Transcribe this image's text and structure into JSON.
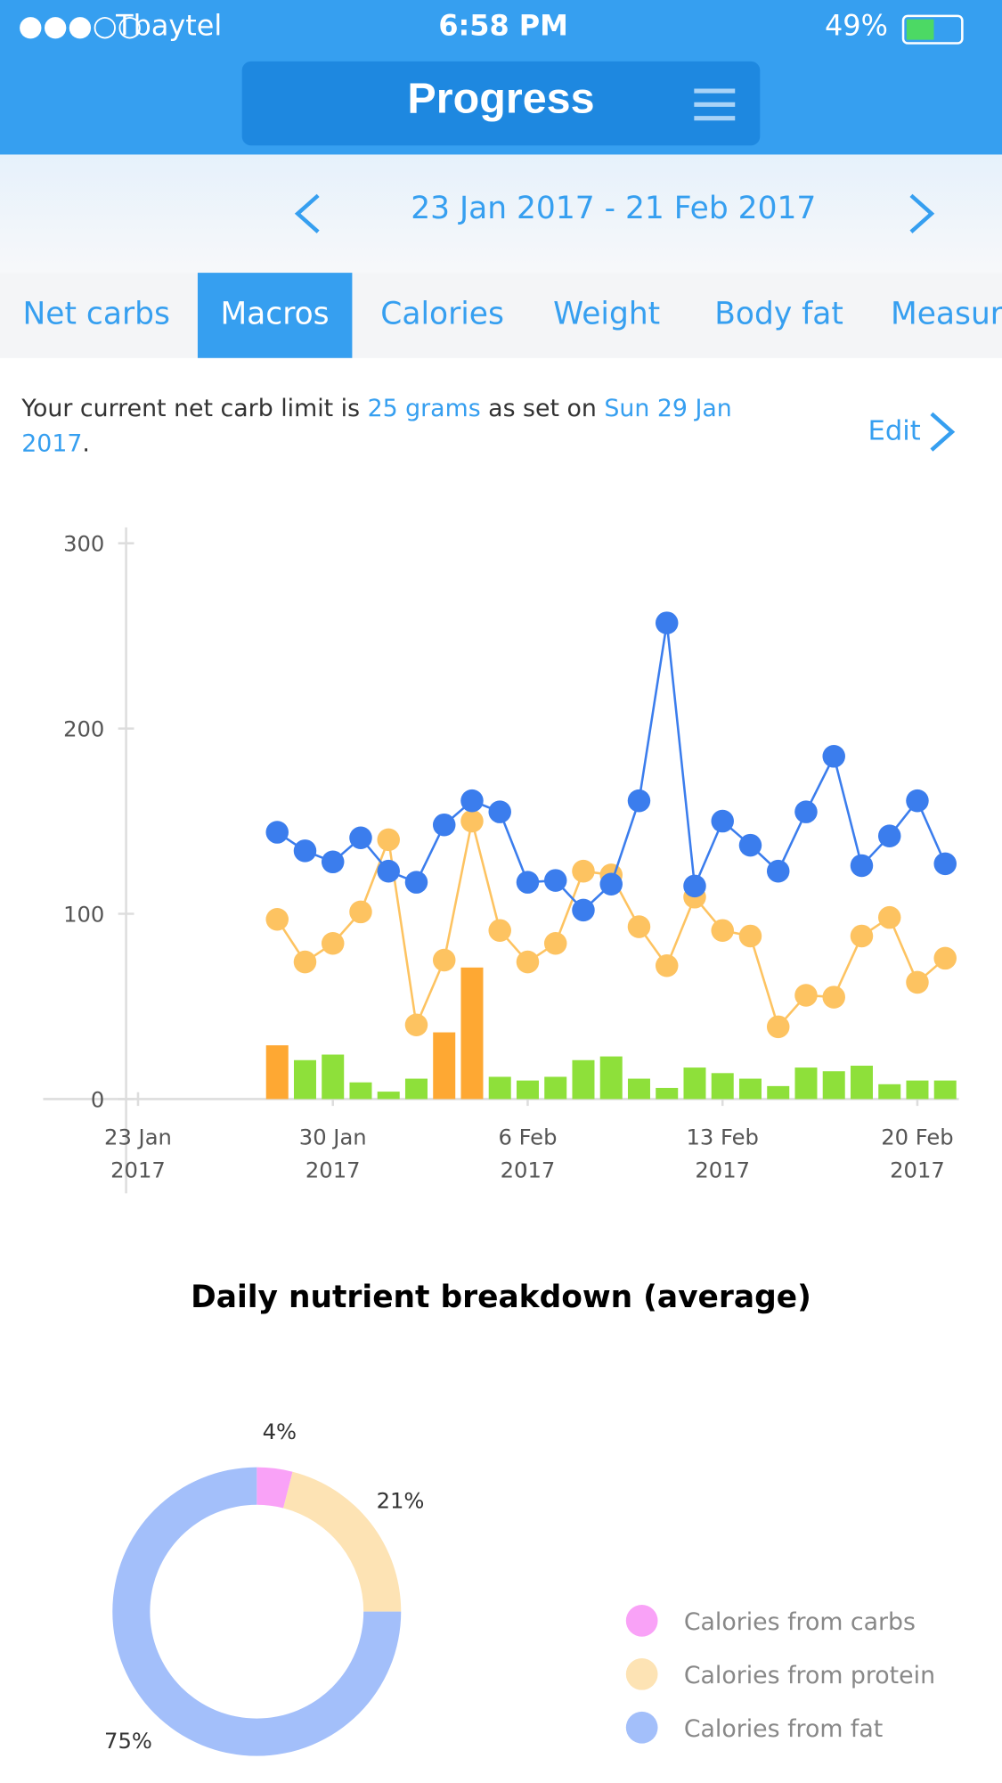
{
  "status_bar": {
    "carrier": "Tbaytel",
    "time": "6:58 PM",
    "battery": "49%"
  },
  "header": {
    "title": "Progress"
  },
  "date_range": "23 Jan 2017 - 21 Feb 2017",
  "tabs": [
    "Net carbs",
    "Macros",
    "Calories",
    "Weight",
    "Body fat",
    "Measurements"
  ],
  "selected_tab": 1,
  "info": {
    "prefix": "Your current net carb limit is ",
    "limit": "25 grams",
    "middle": " as set on ",
    "date": "Sun 29 Jan 2017",
    "suffix": ".",
    "edit": "Edit"
  },
  "chart_data": [
    {
      "type": "combo",
      "x": [
        "2017-01-28",
        "2017-01-29",
        "2017-01-30",
        "2017-01-31",
        "2017-02-01",
        "2017-02-02",
        "2017-02-03",
        "2017-02-04",
        "2017-02-05",
        "2017-02-06",
        "2017-02-07",
        "2017-02-08",
        "2017-02-09",
        "2017-02-10",
        "2017-02-11",
        "2017-02-12",
        "2017-02-13",
        "2017-02-14",
        "2017-02-15",
        "2017-02-16",
        "2017-02-17",
        "2017-02-18",
        "2017-02-19",
        "2017-02-20",
        "2017-02-21"
      ],
      "xlim": [
        "2017-01-20",
        "2017-02-21"
      ],
      "xticks": [
        {
          "value": "2017-01-23",
          "label": "23 Jan 2017"
        },
        {
          "value": "2017-01-30",
          "label": "30 Jan 2017"
        },
        {
          "value": "2017-02-06",
          "label": "6 Feb 2017"
        },
        {
          "value": "2017-02-13",
          "label": "13 Feb 2017"
        },
        {
          "value": "2017-02-20",
          "label": "20 Feb 2017"
        }
      ],
      "ylim": [
        0,
        300
      ],
      "yticks": [
        0,
        100,
        200,
        300
      ],
      "series": [
        {
          "type": "bar",
          "colors": [
            "#fea833",
            "#8ee03a",
            "#8ee03a",
            "#8ee03a",
            "#8ee03a",
            "#8ee03a",
            "#fea833",
            "#fea833",
            "#8ee03a",
            "#8ee03a",
            "#8ee03a",
            "#8ee03a",
            "#8ee03a",
            "#8ee03a",
            "#8ee03a",
            "#8ee03a",
            "#8ee03a",
            "#8ee03a",
            "#8ee03a",
            "#8ee03a",
            "#8ee03a",
            "#8ee03a",
            "#8ee03a",
            "#8ee03a",
            "#8ee03a"
          ],
          "values": [
            29,
            21,
            24,
            9,
            4,
            11,
            36,
            71,
            12,
            10,
            12,
            21,
            23,
            11,
            6,
            17,
            14,
            11,
            7,
            17,
            15,
            18,
            8,
            10,
            10
          ]
        },
        {
          "type": "line",
          "color": "#fdc361",
          "values": [
            97,
            74,
            84,
            101,
            140,
            40,
            75,
            150,
            91,
            74,
            84,
            123,
            121,
            93,
            72,
            109,
            91,
            88,
            39,
            56,
            55,
            88,
            98,
            63,
            76
          ]
        },
        {
          "type": "line",
          "color": "#3b7ded",
          "values": [
            144,
            134,
            128,
            141,
            123,
            117,
            148,
            161,
            155,
            117,
            118,
            102,
            116,
            161,
            257,
            115,
            150,
            137,
            123,
            155,
            185,
            126,
            142,
            161,
            127
          ]
        }
      ]
    },
    {
      "type": "pie",
      "title": "Daily nutrient breakdown (average)",
      "categories": [
        "Calories from carbs",
        "Calories from protein",
        "Calories from fat"
      ],
      "values": [
        4,
        21,
        75
      ],
      "value_labels": [
        "4%",
        "21%",
        "75%"
      ],
      "colors": [
        "#f9a2f7",
        "#fde3b4",
        "#a3bffa"
      ]
    }
  ]
}
